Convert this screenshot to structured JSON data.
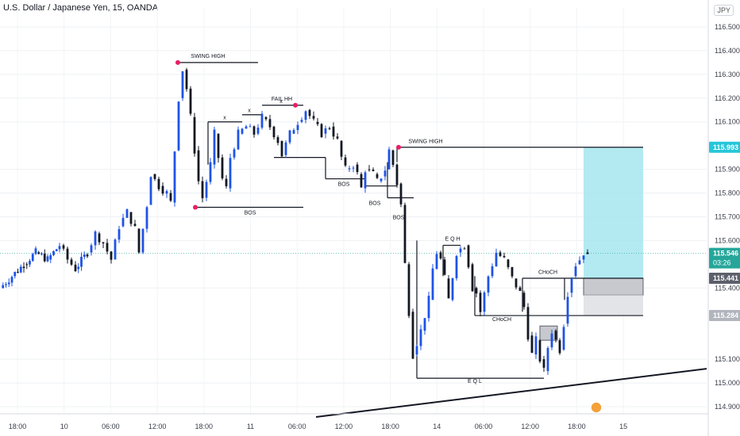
{
  "title": "U.S. Dollar / Japanese Yen, 15, OANDA",
  "currency_badge": "JPY",
  "chart_data": {
    "type": "candlestick",
    "symbol": "USDJPY",
    "interval": "15",
    "exchange": "OANDA",
    "y_range": [
      114.87,
      116.58
    ],
    "y_ticks": [
      116.5,
      116.4,
      116.3,
      116.2,
      116.1,
      115.9,
      115.8,
      115.7,
      115.6,
      115.4,
      115.1,
      115.0,
      114.9
    ],
    "y_tick_labels": [
      "116.500",
      "116.400",
      "116.300",
      "116.200",
      "116.100",
      "115.900",
      "115.800",
      "115.700",
      "115.600",
      "115.400",
      "115.100",
      "115.000",
      "114.900"
    ],
    "x_tick_labels": [
      "18:00",
      "10",
      "06:00",
      "12:00",
      "18:00",
      "11",
      "06:00",
      "12:00",
      "18:00",
      "14",
      "06:00",
      "12:00",
      "18:00",
      "15"
    ],
    "price_tags": [
      {
        "label": "115.993",
        "value": 115.993,
        "color": "#26c6da"
      },
      {
        "label": "115.546",
        "value": 115.546,
        "color": "#26a69a",
        "sub": "03:26"
      },
      {
        "label": "115.441",
        "value": 115.441,
        "color": "#5d606b"
      },
      {
        "label": "115.284",
        "value": 115.284,
        "color": "#b2b5be"
      }
    ],
    "price_path": [
      [
        0,
        115.4
      ],
      [
        3,
        115.45
      ],
      [
        6,
        115.5
      ],
      [
        9,
        115.55
      ],
      [
        12,
        115.52
      ],
      [
        15,
        115.58
      ],
      [
        17,
        115.52
      ],
      [
        19,
        115.48
      ],
      [
        22,
        115.55
      ],
      [
        24,
        115.63
      ],
      [
        26,
        115.59
      ],
      [
        28,
        115.52
      ],
      [
        30,
        115.66
      ],
      [
        32,
        115.72
      ],
      [
        34,
        115.65
      ],
      [
        35,
        115.55
      ],
      [
        37,
        115.75
      ],
      [
        38,
        115.88
      ],
      [
        40,
        115.83
      ],
      [
        42,
        115.8
      ],
      [
        43,
        115.76
      ],
      [
        44,
        115.98
      ],
      [
        45,
        116.2
      ],
      [
        46,
        116.32
      ],
      [
        47,
        116.24
      ],
      [
        48,
        116.12
      ],
      [
        49,
        115.98
      ],
      [
        50,
        115.85
      ],
      [
        51,
        115.78
      ],
      [
        53,
        115.92
      ],
      [
        54,
        116.05
      ],
      [
        55,
        115.95
      ],
      [
        56,
        115.86
      ],
      [
        57,
        115.82
      ],
      [
        58,
        115.95
      ],
      [
        60,
        116.05
      ],
      [
        62,
        116.08
      ],
      [
        64,
        116.05
      ],
      [
        66,
        116.12
      ],
      [
        68,
        116.08
      ],
      [
        70,
        116.02
      ],
      [
        71,
        115.96
      ],
      [
        73,
        116.05
      ],
      [
        75,
        116.1
      ],
      [
        77,
        116.15
      ],
      [
        79,
        116.1
      ],
      [
        81,
        116.05
      ],
      [
        83,
        116.08
      ],
      [
        85,
        116.02
      ],
      [
        86,
        115.95
      ],
      [
        87,
        115.9
      ],
      [
        89,
        115.92
      ],
      [
        90,
        115.88
      ],
      [
        91,
        115.82
      ],
      [
        92,
        115.9
      ],
      [
        94,
        115.88
      ],
      [
        95,
        115.85
      ],
      [
        96,
        115.87
      ],
      [
        97,
        115.9
      ],
      [
        98,
        115.98
      ],
      [
        99,
        115.92
      ],
      [
        100,
        115.84
      ],
      [
        101,
        115.75
      ],
      [
        102,
        115.5
      ],
      [
        103,
        115.3
      ],
      [
        104,
        115.12
      ],
      [
        106,
        115.22
      ],
      [
        108,
        115.35
      ],
      [
        109,
        115.48
      ],
      [
        110,
        115.55
      ],
      [
        111,
        115.52
      ],
      [
        112,
        115.44
      ],
      [
        113,
        115.35
      ],
      [
        115,
        115.55
      ],
      [
        117,
        115.58
      ],
      [
        118,
        115.5
      ],
      [
        119,
        115.4
      ],
      [
        120,
        115.38
      ],
      [
        121,
        115.3
      ],
      [
        123,
        115.45
      ],
      [
        125,
        115.55
      ],
      [
        127,
        115.52
      ],
      [
        129,
        115.44
      ],
      [
        131,
        115.38
      ],
      [
        132,
        115.32
      ],
      [
        133,
        115.2
      ],
      [
        134,
        115.12
      ],
      [
        135,
        115.18
      ],
      [
        136,
        115.1
      ],
      [
        137,
        115.05
      ],
      [
        138,
        115.15
      ],
      [
        139,
        115.22
      ],
      [
        140,
        115.18
      ],
      [
        141,
        115.14
      ],
      [
        142,
        115.25
      ],
      [
        143,
        115.38
      ],
      [
        144,
        115.45
      ],
      [
        145,
        115.5
      ],
      [
        146,
        115.52
      ],
      [
        147,
        115.55
      ],
      [
        148,
        115.53
      ]
    ],
    "annotations": [
      {
        "label": "SWING HIGH"
      },
      {
        "label": "FAIL HH"
      },
      {
        "label": "SWING HIGH"
      },
      {
        "label": "BOS"
      },
      {
        "label": "BOS"
      },
      {
        "label": "BOS"
      },
      {
        "label": "BOS"
      },
      {
        "label": "E Q H"
      },
      {
        "label": "CHoCH"
      },
      {
        "label": "CHoCH"
      },
      {
        "label": "E Q L"
      }
    ],
    "x_marks": [
      "x",
      "x",
      "x"
    ]
  }
}
